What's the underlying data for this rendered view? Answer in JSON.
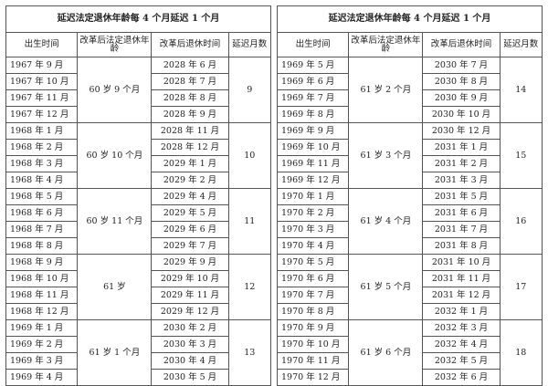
{
  "tables": [
    {
      "title": "延迟法定退休年龄每 4 个月延迟 1 个月",
      "headers": [
        "出生时间",
        "改革后法定退休年龄",
        "改革后退休时间",
        "延迟月数"
      ],
      "groups": [
        {
          "age": "60 岁 9 个月",
          "delay": "9",
          "rows": [
            [
              "1967 年 9 月",
              "2028 年 6 月"
            ],
            [
              "1967 年 10 月",
              "2028 年 7 月"
            ],
            [
              "1967 年 11 月",
              "2028 年 8 月"
            ],
            [
              "1967 年 12 月",
              "2028 年 9 月"
            ]
          ]
        },
        {
          "age": "60 岁 10 个月",
          "delay": "10",
          "rows": [
            [
              "1968 年 1 月",
              "2028 年 11 月"
            ],
            [
              "1968 年 2 月",
              "2028 年 12 月"
            ],
            [
              "1968 年 3 月",
              "2029 年 1 月"
            ],
            [
              "1968 年 4 月",
              "2029 年 2 月"
            ]
          ]
        },
        {
          "age": "60 岁 11 个月",
          "delay": "11",
          "rows": [
            [
              "1968 年 5 月",
              "2029 年 4 月"
            ],
            [
              "1968 年 6 月",
              "2029 年 5 月"
            ],
            [
              "1968 年 7 月",
              "2029 年 6 月"
            ],
            [
              "1968 年 8 月",
              "2029 年 7 月"
            ]
          ]
        },
        {
          "age": "61 岁",
          "delay": "12",
          "rows": [
            [
              "1968 年 9 月",
              "2029 年 9 月"
            ],
            [
              "1968 年 10 月",
              "2029 年 10 月"
            ],
            [
              "1968 年 11 月",
              "2029 年 11 月"
            ],
            [
              "1968 年 12 月",
              "2029 年 12 月"
            ]
          ]
        },
        {
          "age": "61 岁 1 个月",
          "delay": "13",
          "rows": [
            [
              "1969 年 1 月",
              "2030 年 2 月"
            ],
            [
              "1969 年 2 月",
              "2030 年 3 月"
            ],
            [
              "1969 年 3 月",
              "2030 年 4 月"
            ],
            [
              "1969 年 4 月",
              "2030 年 5 月"
            ]
          ]
        }
      ]
    },
    {
      "title": "延迟法定退休年龄每 4 个月延迟 1 个月",
      "headers": [
        "出生时间",
        "改革后法定退休年龄",
        "改革后退休时间",
        "延迟月数"
      ],
      "groups": [
        {
          "age": "61 岁 2 个月",
          "delay": "14",
          "rows": [
            [
              "1969 年 5 月",
              "2030 年 7 月"
            ],
            [
              "1969 年 6 月",
              "2030 年 8 月"
            ],
            [
              "1969 年 7 月",
              "2030 年 9 月"
            ],
            [
              "1969 年 8 月",
              "2030 年 10 月"
            ]
          ]
        },
        {
          "age": "61 岁 3 个月",
          "delay": "15",
          "rows": [
            [
              "1969 年 9 月",
              "2030 年 12 月"
            ],
            [
              "1969 年 10 月",
              "2031 年 1 月"
            ],
            [
              "1969 年 11 月",
              "2031 年 2 月"
            ],
            [
              "1969 年 12 月",
              "2031 年 3 月"
            ]
          ]
        },
        {
          "age": "61 岁 4 个月",
          "delay": "16",
          "rows": [
            [
              "1970 年 1 月",
              "2031 年 5 月"
            ],
            [
              "1970 年 2 月",
              "2031 年 6 月"
            ],
            [
              "1970 年 3 月",
              "2031 年 7 月"
            ],
            [
              "1970 年 4 月",
              "2031 年 8 月"
            ]
          ]
        },
        {
          "age": "61 岁 5 个月",
          "delay": "17",
          "rows": [
            [
              "1970 年 5 月",
              "2031 年 10 月"
            ],
            [
              "1970 年 6 月",
              "2031 年 11 月"
            ],
            [
              "1970 年 7 月",
              "2031 年 12 月"
            ],
            [
              "1970 年 8 月",
              "2032 年 1 月"
            ]
          ]
        },
        {
          "age": "61 岁 6 个月",
          "delay": "18",
          "rows": [
            [
              "1970 年 9 月",
              "2032 年 3 月"
            ],
            [
              "1970 年 10 月",
              "2032 年 4 月"
            ],
            [
              "1970 年 11 月",
              "2032 年 5 月"
            ],
            [
              "1970 年 12 月",
              "2032 年 6 月"
            ]
          ]
        }
      ]
    }
  ]
}
